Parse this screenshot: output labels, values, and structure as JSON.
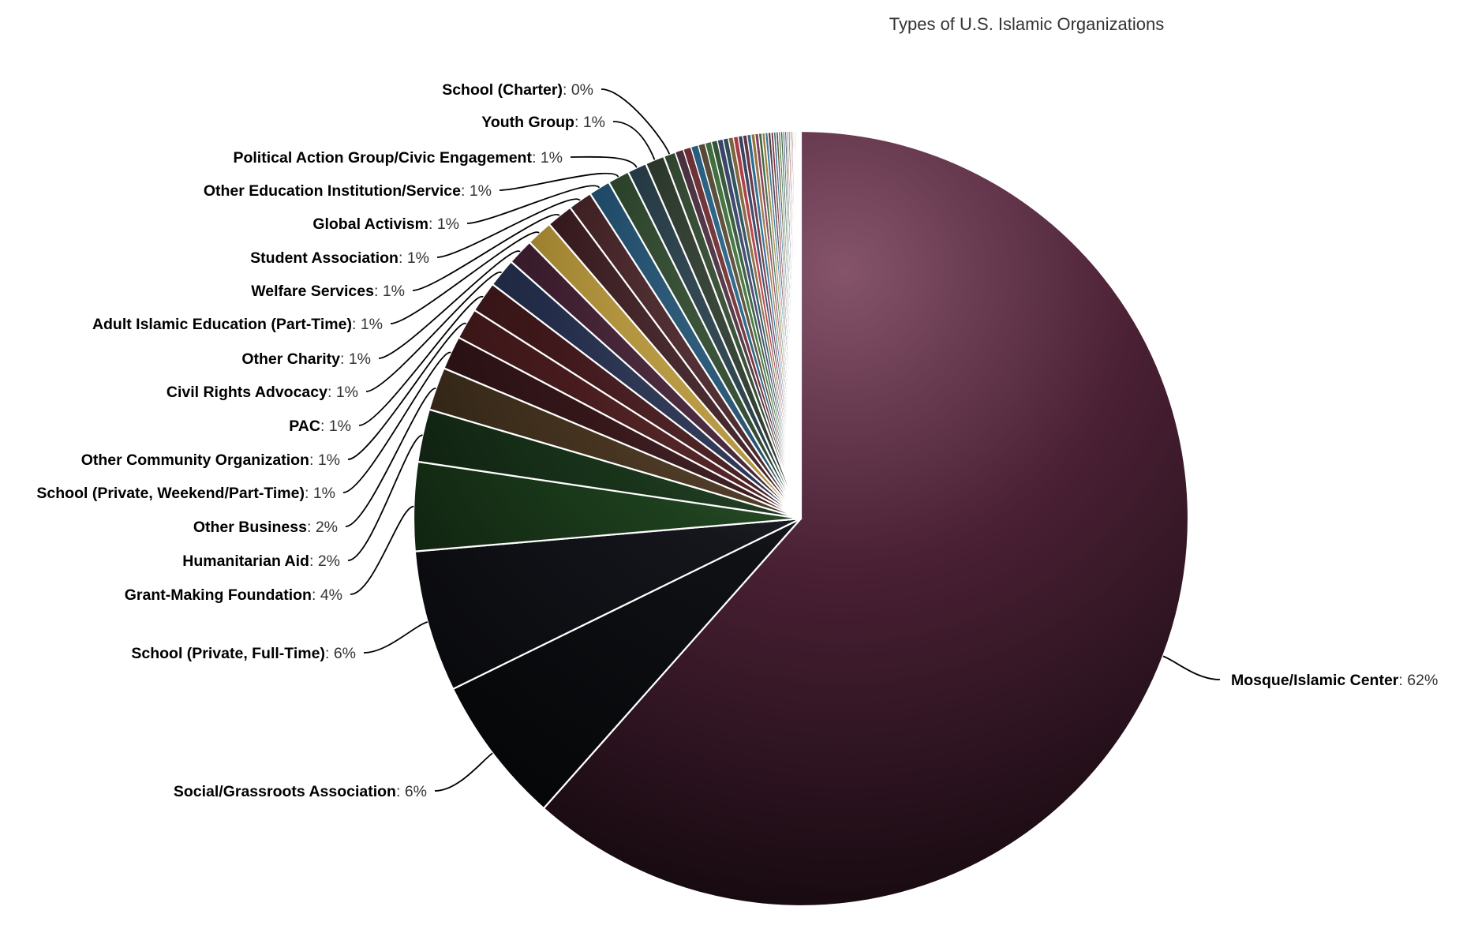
{
  "chart_data": {
    "type": "pie",
    "title": "Types of U.S. Islamic Organizations",
    "start_angle": "12 o'clock, clockwise",
    "slices": [
      {
        "name": "Mosque/Islamic Center",
        "label": "62%",
        "value": 61.6,
        "color": "#6a2e4a"
      },
      {
        "name": "Social/Grassroots Association",
        "label": "6%",
        "value": 6.2,
        "color": "#16181e"
      },
      {
        "name": "School (Private, Full-Time)",
        "label": "6%",
        "value": 5.9,
        "color": "#1c1f28"
      },
      {
        "name": "Grant-Making Foundation",
        "label": "4%",
        "value": 3.7,
        "color": "#2a5a2a"
      },
      {
        "name": "Humanitarian Aid",
        "label": "2%",
        "value": 2.2,
        "color": "#244a26"
      },
      {
        "name": "Other Business",
        "label": "2%",
        "value": 1.8,
        "color": "#644a2e"
      },
      {
        "name": "School (Private, Weekend/Part-Time)",
        "label": "1%",
        "value": 1.4,
        "color": "#4a2024"
      },
      {
        "name": "Other Community Organization",
        "label": "1%",
        "value": 1.3,
        "color": "#66262a"
      },
      {
        "name": "PAC",
        "label": "1%",
        "value": 1.3,
        "color": "#5a2226"
      },
      {
        "name": "Civil Rights Advocacy",
        "label": "1%",
        "value": 1.2,
        "color": "#324068"
      },
      {
        "name": "Other Charity",
        "label": "1%",
        "value": 1.1,
        "color": "#542a42"
      },
      {
        "name": "Adult Islamic Education (Part-Time)",
        "label": "1%",
        "value": 1.1,
        "color": "#e6bc48"
      },
      {
        "name": "Welfare Services",
        "label": "1%",
        "value": 1.1,
        "color": "#4a2228"
      },
      {
        "name": "Student Association",
        "label": "1%",
        "value": 1.0,
        "color": "#54282c"
      },
      {
        "name": "Global Activism",
        "label": "1%",
        "value": 0.9,
        "color": "#225e86"
      },
      {
        "name": "Other Education Institution/Service",
        "label": "1%",
        "value": 0.9,
        "color": "#30502e"
      },
      {
        "name": "Political Action Group/Civic Engagement",
        "label": "1%",
        "value": 0.8,
        "color": "#24404e"
      },
      {
        "name": "Youth Group",
        "label": "1%",
        "value": 0.8,
        "color": "#2a3a2a"
      },
      {
        "name": "School (Charter)",
        "label": "0%",
        "value": 0.5,
        "color": "#2e4a2c"
      }
    ],
    "unlabeled_slices": {
      "values": [
        0.35,
        0.33,
        0.31,
        0.29,
        0.27,
        0.25,
        0.24,
        0.22,
        0.21,
        0.2,
        0.19,
        0.18,
        0.17,
        0.16,
        0.15,
        0.14,
        0.13,
        0.12,
        0.12,
        0.11,
        0.1,
        0.1,
        0.09,
        0.09,
        0.08,
        0.08,
        0.07,
        0.07,
        0.06,
        0.06,
        0.05,
        0.05,
        0.05,
        0.04,
        0.04,
        0.04,
        0.03,
        0.03
      ],
      "colors": [
        "#4e2c40",
        "#7a2a30",
        "#1e6692",
        "#5c4a30",
        "#3a7a38",
        "#2c5a30",
        "#344070",
        "#224e5e",
        "#8c6a38",
        "#c4343c",
        "#2c3c62",
        "#6a2a3c",
        "#1c6e9e",
        "#a8783a",
        "#8a3a5a",
        "#3a6a3a",
        "#b08a3a",
        "#2a7aa0"
      ]
    }
  }
}
